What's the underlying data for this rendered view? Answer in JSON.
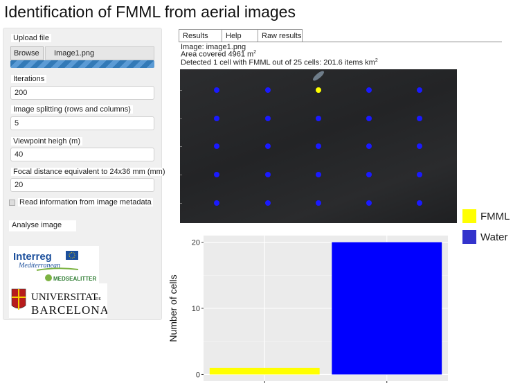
{
  "title": "Identification of FMML from aerial images",
  "sidebar": {
    "upload": {
      "label": "Upload file",
      "browse": "Browse",
      "file_name": "Image1.png",
      "progress": 1.0,
      "progress_color": "#337ab7"
    },
    "iterations": {
      "label": "Iterations",
      "value": "200"
    },
    "splitting": {
      "label": "Image splitting (rows and columns)",
      "value": "5"
    },
    "viewpoint": {
      "label": "Viewpoint heigh (m)",
      "value": "40"
    },
    "focal": {
      "label": "Focal distance equivalent to 24x36 mm (mm)",
      "value": "20"
    },
    "metadata": {
      "label": "Read information from image metadata",
      "checked": false
    },
    "analyse_button": "Analyse image",
    "logos": {
      "interreg": {
        "name": "Interreg",
        "sub": "Mediterranean",
        "project": "MEDSEALITTER"
      },
      "ub": {
        "line1": "UNIVERSITAT",
        "de": "DE",
        "line2": "BARCELONA"
      }
    }
  },
  "tabs": [
    {
      "label": "Results"
    },
    {
      "label": "Help"
    },
    {
      "label": "Raw results"
    }
  ],
  "info": {
    "image": "Image: image1.png",
    "area_prefix": "Area covered 4961 m",
    "area_sup": "2",
    "detected_prefix": "Detected 1 cell with FMML out of 25 cells: 201.6 items km",
    "detected_sup": "2"
  },
  "grid": {
    "rows": 5,
    "cols": 5,
    "fmml_cells": [
      [
        0,
        2
      ]
    ],
    "water_color": "#1a1aff",
    "fmml_color": "#ffff00"
  },
  "legend": [
    {
      "name": "FMML",
      "color": "#ffff00"
    },
    {
      "name": "Water",
      "color": "#3333cc"
    }
  ],
  "chart_data": {
    "type": "bar",
    "categories": [
      "FMML",
      "Water"
    ],
    "values": [
      1,
      20
    ],
    "colors": [
      "#ffff00",
      "#0000ff"
    ],
    "ylabel": "Number of cells",
    "yticks": [
      0,
      10,
      20
    ],
    "ylim": [
      -1,
      21
    ]
  }
}
